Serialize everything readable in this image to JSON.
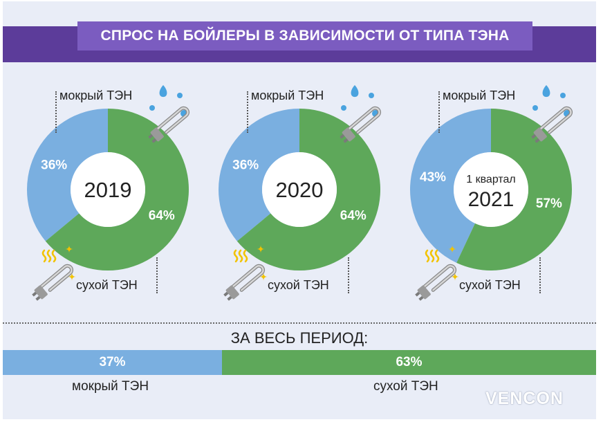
{
  "title": "СПРОС НА БОЙЛЕРЫ В ЗАВИСИМОСТИ ОТ ТИПА ТЭНА",
  "colors": {
    "wet": "#7aafe0",
    "dry": "#5ea85a",
    "title_band": "#5c3c9a",
    "title_box": "#7b5cc0",
    "background": "#e9edf7"
  },
  "chart_data": [
    {
      "type": "pie",
      "center_label": "2019",
      "categories": [
        "мокрый ТЭН",
        "сухой ТЭН"
      ],
      "values": [
        36,
        64
      ],
      "labels": [
        "36%",
        "64%"
      ]
    },
    {
      "type": "pie",
      "center_label": "2020",
      "categories": [
        "мокрый ТЭН",
        "сухой ТЭН"
      ],
      "values": [
        36,
        64
      ],
      "labels": [
        "36%",
        "64%"
      ]
    },
    {
      "type": "pie",
      "center_label_top": "1 квартал",
      "center_label": "2021",
      "categories": [
        "мокрый ТЭН",
        "сухой ТЭН"
      ],
      "values": [
        43,
        57
      ],
      "labels": [
        "43%",
        "57%"
      ]
    },
    {
      "type": "bar",
      "title": "ЗА ВЕСЬ ПЕРИОД:",
      "categories": [
        "мокрый ТЭН",
        "сухой ТЭН"
      ],
      "values": [
        37,
        63
      ],
      "labels": [
        "37%",
        "63%"
      ]
    }
  ],
  "legend": {
    "wet": "мокрый ТЭН",
    "dry": "сухой ТЭН"
  },
  "period": {
    "title": "ЗА ВЕСЬ ПЕРИОД:",
    "wet_label": "37%",
    "dry_label": "63%",
    "wet_value": 37,
    "dry_value": 63
  },
  "icons": [
    "water-drop-icon",
    "heating-element-icon",
    "sparkle-icon"
  ],
  "logo": "VENCON"
}
